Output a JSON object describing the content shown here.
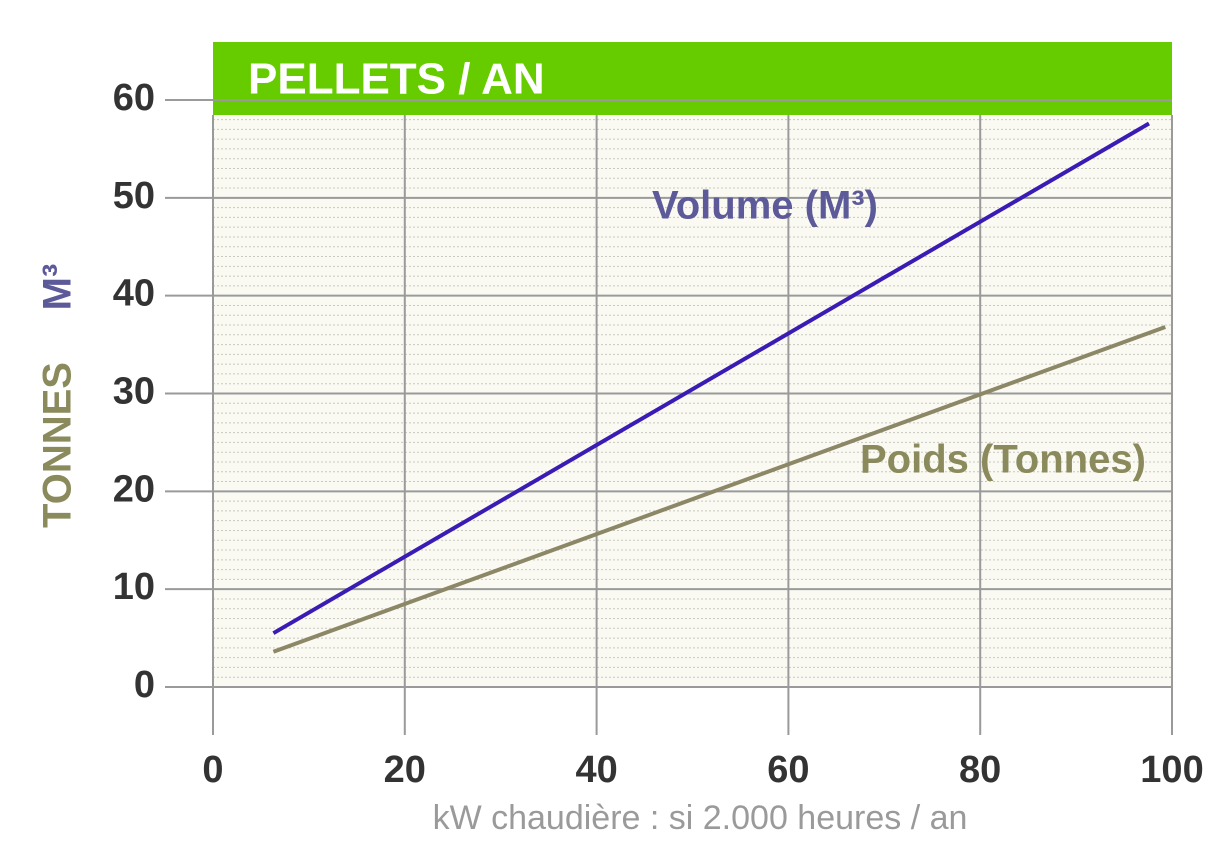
{
  "chart_data": {
    "type": "line",
    "title": "PELLETS / AN",
    "x_label": "kW chaudière : si 2.000 heures / an",
    "y_labels": [
      {
        "text": "TONNES",
        "color": "#8a8a5c"
      },
      {
        "text": "M³",
        "color": "#5d5a99"
      }
    ],
    "xlim": [
      0,
      100
    ],
    "xticks": [
      0,
      20,
      40,
      60,
      80,
      100
    ],
    "ylim": [
      0,
      60
    ],
    "yticks": [
      0,
      10,
      20,
      30,
      40,
      50,
      60
    ],
    "grid": true,
    "series": [
      {
        "name": "Volume (M³)",
        "color": "#3a1cb4",
        "x": [
          6.3,
          97.6
        ],
        "values": [
          5.5,
          57.6
        ]
      },
      {
        "name": "Poids (Tonnes)",
        "color": "#8c8766",
        "x": [
          6.3,
          99.3
        ],
        "values": [
          3.6,
          36.8
        ]
      }
    ]
  }
}
